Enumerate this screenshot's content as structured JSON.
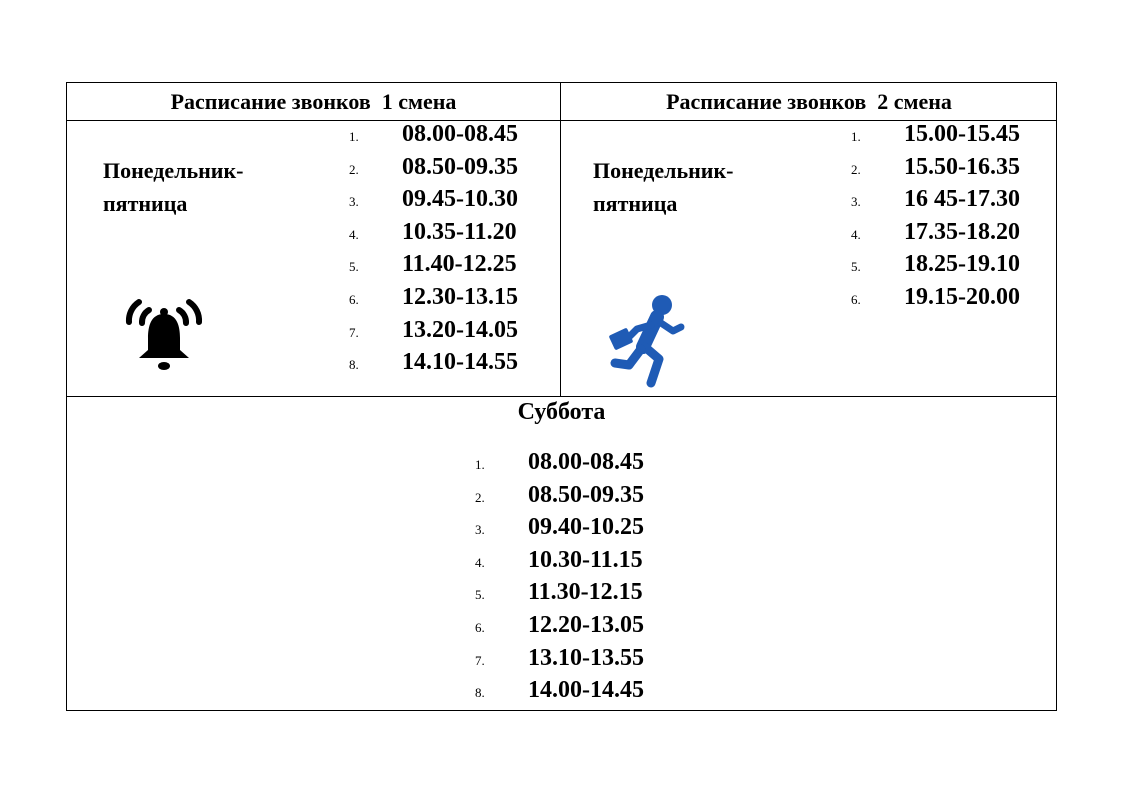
{
  "shift1": {
    "title": "Расписание звонков  1 смена",
    "days_line1": "Понедельник-",
    "days_line2": "пятница",
    "icon": "bell-icon",
    "times": [
      "08.00-08.45",
      "08.50-09.35",
      "09.45-10.30",
      "10.35-11.20",
      "11.40-12.25",
      "12.30-13.15",
      "13.20-14.05",
      "14.10-14.55"
    ]
  },
  "shift2": {
    "title": "Расписание звонков  2 смена",
    "days_line1": "Понедельник-",
    "days_line2": "пятница",
    "icon": "running-person-icon",
    "icon_color": "#1f5bb5",
    "times": [
      "15.00-15.45",
      "15.50-16.35",
      "16 45-17.30",
      "17.35-18.20",
      "18.25-19.10",
      "19.15-20.00"
    ]
  },
  "saturday": {
    "title": "Суббота",
    "times": [
      "08.00-08.45",
      "08.50-09.35",
      "09.40-10.25",
      "10.30-11.15",
      "11.30-12.15",
      "12.20-13.05",
      "13.10-13.55",
      "14.00-14.45"
    ]
  },
  "numbers": [
    "1.",
    "2.",
    "3.",
    "4.",
    "5.",
    "6.",
    "7.",
    "8."
  ]
}
